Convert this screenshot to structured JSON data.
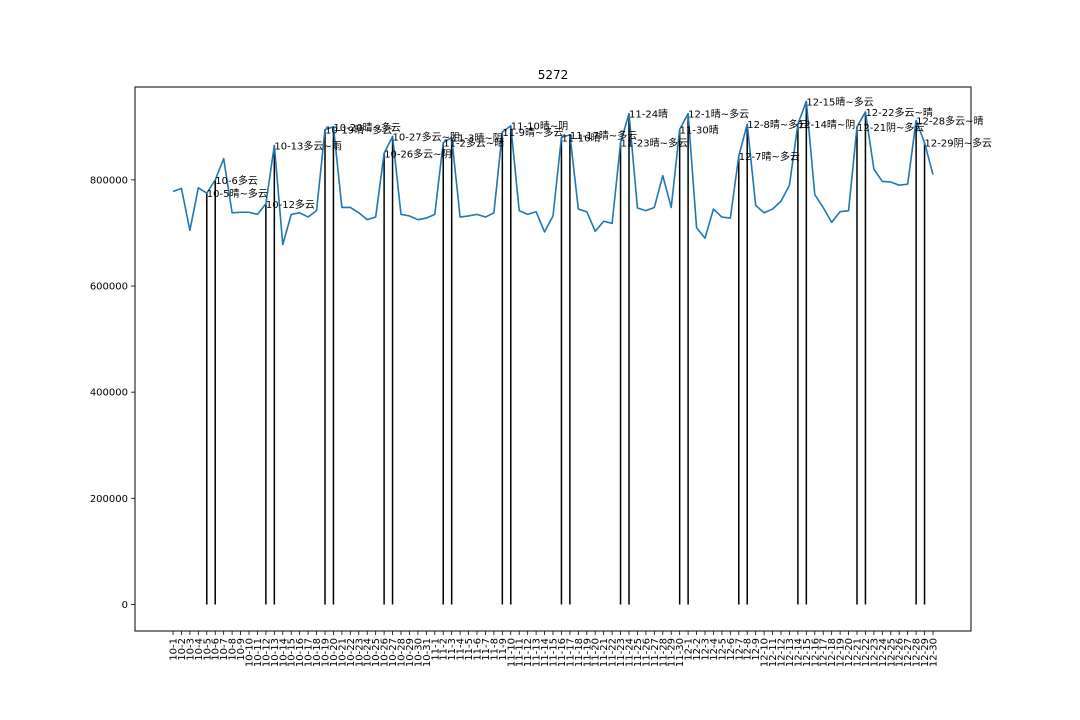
{
  "chart_data": {
    "type": "line",
    "title": "5272",
    "xlabel": "",
    "ylabel": "",
    "ylim": [
      -50000,
      975000
    ],
    "yticks": [
      0,
      200000,
      400000,
      600000,
      800000
    ],
    "ytick_labels": [
      "0",
      "200000",
      "400000",
      "600000",
      "800000"
    ],
    "grid": false,
    "line_color": "#1f77b4",
    "vline_color": "#000000",
    "categories": [
      "10-1",
      "10-2",
      "10-3",
      "10-4",
      "10-5",
      "10-6",
      "10-7",
      "10-8",
      "10-9",
      "10-10",
      "10-11",
      "10-12",
      "10-13",
      "10-14",
      "10-15",
      "10-16",
      "10-17",
      "10-18",
      "10-19",
      "10-20",
      "10-21",
      "10-22",
      "10-23",
      "10-24",
      "10-25",
      "10-26",
      "10-27",
      "10-28",
      "10-29",
      "10-30",
      "10-31",
      "11-1",
      "11-2",
      "11-3",
      "11-4",
      "11-5",
      "11-6",
      "11-7",
      "11-8",
      "11-9",
      "11-10",
      "11-11",
      "11-12",
      "11-13",
      "11-14",
      "11-15",
      "11-16",
      "11-17",
      "11-18",
      "11-19",
      "11-20",
      "11-21",
      "11-22",
      "11-23",
      "11-24",
      "11-25",
      "11-26",
      "11-27",
      "11-28",
      "11-29",
      "11-30",
      "12-1",
      "12-2",
      "12-3",
      "12-4",
      "12-5",
      "12-6",
      "12-7",
      "12-8",
      "12-9",
      "12-10",
      "12-11",
      "12-12",
      "12-13",
      "12-14",
      "12-15",
      "12-16",
      "12-17",
      "12-18",
      "12-19",
      "12-20",
      "12-21",
      "12-22",
      "12-23",
      "12-24",
      "12-25",
      "12-26",
      "12-27",
      "12-28",
      "12-29",
      "12-30"
    ],
    "values": [
      778000,
      784000,
      705000,
      785000,
      775000,
      800000,
      840000,
      738000,
      739000,
      739000,
      735000,
      755000,
      865000,
      678000,
      735000,
      738000,
      730000,
      742000,
      895000,
      900000,
      748000,
      748000,
      738000,
      725000,
      730000,
      850000,
      882000,
      735000,
      732000,
      725000,
      728000,
      735000,
      870000,
      880000,
      730000,
      732000,
      735000,
      730000,
      738000,
      890000,
      902000,
      742000,
      735000,
      740000,
      702000,
      732000,
      880000,
      885000,
      745000,
      740000,
      703000,
      722000,
      718000,
      870000,
      925000,
      747000,
      742000,
      748000,
      808000,
      748000,
      895000,
      925000,
      710000,
      690000,
      745000,
      730000,
      728000,
      845000,
      905000,
      752000,
      738000,
      745000,
      760000,
      790000,
      905000,
      948000,
      772000,
      748000,
      720000,
      740000,
      742000,
      900000,
      928000,
      820000,
      797000,
      796000,
      790000,
      792000,
      912000,
      870000,
      810000
    ],
    "vlines": [
      {
        "category": "10-5",
        "value": 775000
      },
      {
        "category": "10-6",
        "value": 800000
      },
      {
        "category": "10-12",
        "value": 755000
      },
      {
        "category": "10-13",
        "value": 865000
      },
      {
        "category": "10-19",
        "value": 895000
      },
      {
        "category": "10-20",
        "value": 900000
      },
      {
        "category": "10-26",
        "value": 850000
      },
      {
        "category": "10-27",
        "value": 882000
      },
      {
        "category": "11-2",
        "value": 870000
      },
      {
        "category": "11-3",
        "value": 880000
      },
      {
        "category": "11-9",
        "value": 890000
      },
      {
        "category": "11-10",
        "value": 902000
      },
      {
        "category": "11-16",
        "value": 880000
      },
      {
        "category": "11-17",
        "value": 885000
      },
      {
        "category": "11-23",
        "value": 870000
      },
      {
        "category": "11-24",
        "value": 925000
      },
      {
        "category": "11-30",
        "value": 895000
      },
      {
        "category": "12-1",
        "value": 925000
      },
      {
        "category": "12-7",
        "value": 845000
      },
      {
        "category": "12-8",
        "value": 905000
      },
      {
        "category": "12-14",
        "value": 905000
      },
      {
        "category": "12-15",
        "value": 948000
      },
      {
        "category": "12-21",
        "value": 900000
      },
      {
        "category": "12-22",
        "value": 928000
      },
      {
        "category": "12-28",
        "value": 912000
      },
      {
        "category": "12-29",
        "value": 870000
      }
    ],
    "annotations": [
      {
        "category": "10-5",
        "value": 775000,
        "text": "10-5晴~多云"
      },
      {
        "category": "10-6",
        "value": 800000,
        "text": "10-6多云"
      },
      {
        "category": "10-12",
        "value": 755000,
        "text": "10-12多云"
      },
      {
        "category": "10-13",
        "value": 865000,
        "text": "10-13多云~雨"
      },
      {
        "category": "10-19",
        "value": 895000,
        "text": "10-19晴~多云"
      },
      {
        "category": "10-20",
        "value": 900000,
        "text": "10-20晴~多云"
      },
      {
        "category": "10-26",
        "value": 850000,
        "text": "10-26多云~阴"
      },
      {
        "category": "10-27",
        "value": 882000,
        "text": "10-27多云~阴"
      },
      {
        "category": "11-2",
        "value": 870000,
        "text": "11-2多云~晴"
      },
      {
        "category": "11-3",
        "value": 880000,
        "text": "11-3晴~阴"
      },
      {
        "category": "11-9",
        "value": 890000,
        "text": "11-9晴~多云"
      },
      {
        "category": "11-10",
        "value": 902000,
        "text": "11-10晴~阴"
      },
      {
        "category": "11-16",
        "value": 880000,
        "text": "11-16晴"
      },
      {
        "category": "11-17",
        "value": 885000,
        "text": "11-17晴~多云"
      },
      {
        "category": "11-23",
        "value": 870000,
        "text": "11-23晴~多云"
      },
      {
        "category": "11-24",
        "value": 925000,
        "text": "11-24晴"
      },
      {
        "category": "11-30",
        "value": 895000,
        "text": "11-30晴"
      },
      {
        "category": "12-1",
        "value": 925000,
        "text": "12-1晴~多云"
      },
      {
        "category": "12-7",
        "value": 845000,
        "text": "12-7晴~多云"
      },
      {
        "category": "12-8",
        "value": 905000,
        "text": "12-8晴~多云"
      },
      {
        "category": "12-14",
        "value": 905000,
        "text": "12-14晴~阴"
      },
      {
        "category": "12-15",
        "value": 948000,
        "text": "12-15晴~多云"
      },
      {
        "category": "12-21",
        "value": 900000,
        "text": "12-21阴~多云"
      },
      {
        "category": "12-22",
        "value": 928000,
        "text": "12-22多云~晴"
      },
      {
        "category": "12-28",
        "value": 912000,
        "text": "12-28多云~晴"
      },
      {
        "category": "12-29",
        "value": 870000,
        "text": "12-29阴~多云"
      }
    ]
  }
}
